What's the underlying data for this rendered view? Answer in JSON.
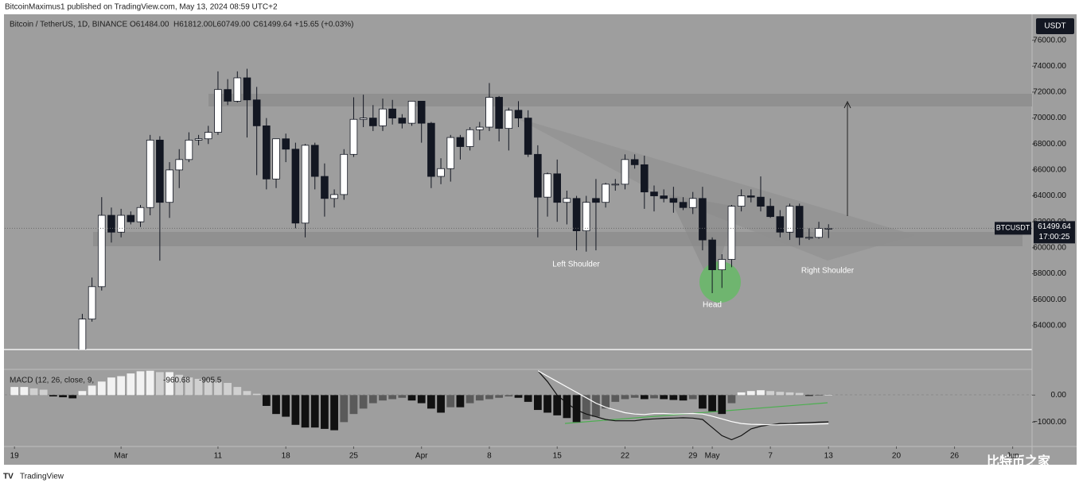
{
  "chart_data": {
    "type": "candlestick",
    "publisher": "BitcoinMaximus1 published on TradingView.com, May 13, 2024 08:59 UTC+2",
    "symbol": "Bitcoin / TetherUS, 1D, BINANCE",
    "ohlc_text": [
      "O61484.00",
      "H61812.00",
      "L60749.00",
      "C61499.64",
      "+15.65 (+0.03%)"
    ],
    "currency": "USDT",
    "price_label": {
      "symbol": "BTCUSDT",
      "price": "61499.64",
      "countdown": "17:00:25"
    },
    "annotations": [
      "Left Shoulder",
      "Head",
      "Right Shoulder"
    ],
    "footer": "TradingView",
    "watermark": "比特币之家",
    "up_color": "#ffffff",
    "down_color": "#131722",
    "x": [
      0,
      1,
      2,
      3,
      4,
      5,
      6,
      7,
      8,
      9,
      10,
      11,
      12,
      13,
      14,
      15,
      16,
      17,
      18,
      19,
      20,
      21,
      22,
      23,
      24,
      25,
      26,
      27,
      28,
      29,
      30,
      31,
      32,
      33,
      34,
      35,
      36,
      37,
      38,
      39,
      40,
      41,
      42,
      43,
      44,
      45,
      46,
      47,
      48,
      49,
      50,
      51,
      52,
      53,
      54,
      55,
      56,
      57,
      58,
      59,
      60,
      61,
      62,
      63,
      64,
      65,
      66,
      67,
      68,
      69,
      70,
      71,
      72,
      73,
      74,
      75,
      76,
      77,
      78,
      79,
      80,
      81,
      82,
      83,
      84
    ],
    "open": [
      null,
      null,
      null,
      null,
      null,
      null,
      null,
      52000,
      54500,
      57000,
      62500,
      61200,
      62500,
      62000,
      63100,
      68300,
      63500,
      66000,
      66800,
      68300,
      68400,
      68900,
      72200,
      71300,
      73100,
      71400,
      69400,
      65300,
      68400,
      67600,
      61900,
      67900,
      65500,
      63800,
      64100,
      67200,
      69900,
      70000,
      69400,
      70700,
      70000,
      69600,
      71300,
      69600,
      65500,
      66100,
      68500,
      67800,
      69100,
      69300,
      71600,
      69200,
      70600,
      70000,
      67200,
      63900,
      65700,
      63500,
      63800,
      61300,
      63800,
      63500,
      64900,
      64900,
      66800,
      66400,
      64300,
      64000,
      63800,
      63500,
      63100,
      63800,
      60600,
      58300,
      59100,
      63200,
      64000,
      63900,
      63200,
      62400,
      61200,
      63200,
      60800,
      60800,
      61484
    ],
    "high": [
      null,
      null,
      null,
      null,
      null,
      null,
      null,
      54900,
      57700,
      63900,
      63100,
      63000,
      62800,
      63300,
      68700,
      68600,
      66600,
      67600,
      68900,
      68700,
      69400,
      73600,
      73000,
      73600,
      73800,
      72400,
      70000,
      68200,
      68800,
      68100,
      68000,
      68100,
      66500,
      64500,
      67600,
      71600,
      71800,
      71000,
      71500,
      71400,
      70300,
      71300,
      71300,
      69700,
      66900,
      68700,
      68700,
      69300,
      69700,
      72700,
      71700,
      70800,
      71300,
      70600,
      67900,
      65800,
      66800,
      64400,
      64000,
      64000,
      65300,
      65000,
      65300,
      67200,
      67200,
      67100,
      64800,
      64500,
      64700,
      63900,
      64300,
      64700,
      60800,
      59500,
      63300,
      64500,
      64500,
      65500,
      63800,
      62900,
      63400,
      63400,
      61500,
      62000,
      61812
    ],
    "low": [
      null,
      null,
      null,
      null,
      null,
      null,
      null,
      51800,
      54300,
      56700,
      60400,
      60800,
      61800,
      61600,
      62500,
      59000,
      62300,
      64600,
      66600,
      67900,
      68000,
      68700,
      71000,
      71200,
      68500,
      65600,
      64500,
      64600,
      66600,
      61500,
      60800,
      64500,
      62400,
      63100,
      63700,
      67000,
      69300,
      69000,
      69000,
      69500,
      69200,
      69400,
      68100,
      64600,
      64900,
      65100,
      66800,
      67500,
      68300,
      69000,
      68200,
      67500,
      69300,
      67000,
      60800,
      62400,
      62000,
      61800,
      59800,
      59700,
      59800,
      63100,
      64400,
      64500,
      66100,
      63000,
      62800,
      63500,
      62700,
      62900,
      62600,
      59800,
      56500,
      56900,
      58500,
      62800,
      63500,
      62800,
      62300,
      60800,
      60600,
      60200,
      60600,
      60700,
      60749
    ],
    "close": [
      null,
      null,
      null,
      null,
      null,
      null,
      null,
      54500,
      57000,
      62500,
      61200,
      62500,
      62000,
      63100,
      68300,
      63500,
      66000,
      66800,
      68300,
      68400,
      68900,
      72200,
      71300,
      73100,
      71400,
      69400,
      65300,
      68400,
      67600,
      61900,
      67900,
      65500,
      63800,
      64100,
      67200,
      69900,
      70000,
      69400,
      70700,
      70000,
      69600,
      71300,
      69600,
      65500,
      66100,
      68500,
      67800,
      69100,
      69300,
      71600,
      69200,
      70600,
      70000,
      67200,
      63900,
      65700,
      63500,
      63800,
      61300,
      63500,
      63500,
      64900,
      64900,
      66800,
      66400,
      64300,
      64000,
      63800,
      63500,
      63100,
      63800,
      60600,
      58300,
      59100,
      63200,
      64000,
      63900,
      63200,
      62400,
      61200,
      63200,
      60800,
      60800,
      61484,
      61499.64
    ],
    "xlim": [
      -1,
      105
    ],
    "ylim": [
      52150,
      78000
    ],
    "yticks": [
      {
        "value": 54000,
        "label": "54000.00"
      },
      {
        "value": 56000,
        "label": "56000.00"
      },
      {
        "value": 58000,
        "label": "58000.00"
      },
      {
        "value": 60000,
        "label": "60000.00"
      },
      {
        "value": 62000,
        "label": "62000.00"
      },
      {
        "value": 64000,
        "label": "64000.00"
      },
      {
        "value": 66000,
        "label": "66000.00"
      },
      {
        "value": 68000,
        "label": "68000.00"
      },
      {
        "value": 70000,
        "label": "70000.00"
      },
      {
        "value": 72000,
        "label": "72000.00"
      },
      {
        "value": 74000,
        "label": "74000.00"
      },
      {
        "value": 76000,
        "label": "76000.00"
      }
    ],
    "xticks": [
      {
        "value": 0,
        "label": "19"
      },
      {
        "value": 11,
        "label": "Mar"
      },
      {
        "value": 21,
        "label": "11"
      },
      {
        "value": 28,
        "label": "18"
      },
      {
        "value": 35,
        "label": "25"
      },
      {
        "value": 42,
        "label": "Apr"
      },
      {
        "value": 49,
        "label": "8"
      },
      {
        "value": 56,
        "label": "15"
      },
      {
        "value": 63,
        "label": "22"
      },
      {
        "value": 70,
        "label": "29"
      },
      {
        "value": 72,
        "label": "May"
      },
      {
        "value": 78,
        "label": "7"
      },
      {
        "value": 84,
        "label": "13"
      },
      {
        "value": 91,
        "label": "20"
      },
      {
        "value": 97,
        "label": "26"
      },
      {
        "value": 103,
        "label": "Jun"
      }
    ],
    "macd": {
      "title": "MACD (12, 26, close, 9,",
      "readouts": [
        "-960.68",
        "-905.5"
      ],
      "ylim": [
        -1900,
        950
      ],
      "yticks": [
        {
          "value": 0,
          "label": "0.00"
        },
        {
          "value": -1000,
          "label": "−1000.00"
        }
      ],
      "hist_colors": [
        "#f2f2f2",
        "#d0d0d0",
        "#111111",
        "#5a5a5a"
      ],
      "histogram": [
        300,
        300,
        250,
        200,
        -50,
        -80,
        -120,
        150,
        350,
        500,
        650,
        700,
        800,
        880,
        900,
        850,
        850,
        750,
        650,
        600,
        550,
        500,
        450,
        300,
        150,
        50,
        -400,
        -700,
        -800,
        -1100,
        -1200,
        -1200,
        -1250,
        -1300,
        -1000,
        -700,
        -500,
        -300,
        -200,
        -150,
        -100,
        -200,
        -300,
        -500,
        -650,
        -450,
        -450,
        -300,
        -200,
        -150,
        -100,
        -50,
        -100,
        -250,
        -550,
        -650,
        -750,
        -850,
        -1000,
        -900,
        -800,
        -500,
        -250,
        -150,
        -100,
        -150,
        -120,
        -150,
        -180,
        -200,
        -150,
        -500,
        -600,
        -700,
        -300,
        100,
        150,
        180,
        150,
        120,
        100,
        80,
        -30,
        -20,
        10
      ],
      "series": [
        {
          "color": "#111111",
          "values": [
            null,
            null,
            null,
            null,
            null,
            null,
            null,
            null,
            null,
            null,
            null,
            null,
            null,
            null,
            null,
            null,
            null,
            null,
            null,
            null,
            null,
            null,
            null,
            null,
            null,
            null,
            null,
            null,
            null,
            null,
            null,
            null,
            null,
            null,
            null,
            null,
            null,
            null,
            null,
            null,
            null,
            null,
            null,
            null,
            null,
            null,
            null,
            null,
            null,
            null,
            null,
            null,
            null,
            null,
            900,
            500,
            0,
            -300,
            -550,
            -700,
            -800,
            -900,
            -950,
            -950,
            -950,
            -900,
            -880,
            -860,
            -850,
            -840,
            -850,
            -900,
            -1200,
            -1500,
            -1650,
            -1500,
            -1250,
            -1150,
            -1100,
            -1050,
            -1050,
            -1030,
            -1020,
            -1000,
            -990
          ]
        },
        {
          "color": "#ffffff",
          "values": [
            null,
            null,
            null,
            null,
            null,
            null,
            null,
            null,
            null,
            null,
            null,
            null,
            null,
            null,
            null,
            null,
            null,
            null,
            null,
            null,
            null,
            null,
            null,
            null,
            null,
            null,
            null,
            null,
            null,
            null,
            null,
            null,
            null,
            null,
            null,
            null,
            null,
            null,
            null,
            null,
            null,
            null,
            null,
            null,
            null,
            null,
            null,
            null,
            null,
            null,
            null,
            null,
            null,
            null,
            900,
            700,
            500,
            300,
            100,
            -100,
            -300,
            -450,
            -550,
            -650,
            -700,
            -720,
            -680,
            -680,
            -700,
            -690,
            -680,
            -700,
            -780,
            -880,
            -980,
            -1050,
            -1080,
            -1090,
            -1100,
            -1100,
            -1090,
            -1090,
            -1080,
            -1070,
            -1060
          ]
        }
      ]
    }
  }
}
